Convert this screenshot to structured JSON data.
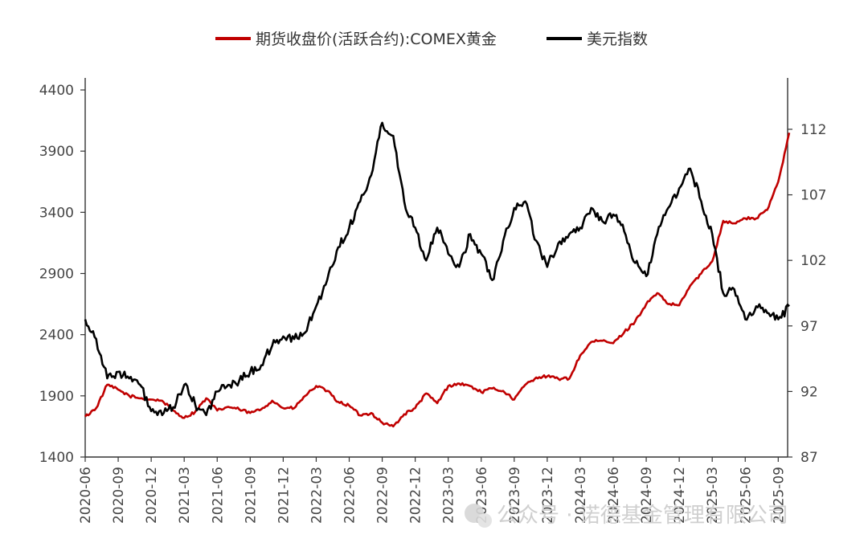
{
  "chart_data": {
    "type": "line",
    "title": "",
    "legend_position": "top",
    "grid": false,
    "x_ticks": [
      "2020-06",
      "2020-09",
      "2020-12",
      "2021-03",
      "2021-06",
      "2021-09",
      "2021-12",
      "2022-03",
      "2022-06",
      "2022-09",
      "2022-12",
      "2023-03",
      "2023-06",
      "2023-09",
      "2023-12",
      "2024-03",
      "2024-06",
      "2024-09",
      "2024-12",
      "2025-03",
      "2025-06",
      "2025-09"
    ],
    "x_range": [
      "2020-06",
      "2025-10"
    ],
    "y_left": {
      "range": [
        1400,
        4400
      ],
      "ticks": [
        1400,
        1900,
        2400,
        2900,
        3400,
        3900,
        4400
      ]
    },
    "y_right": {
      "range": [
        87,
        115
      ],
      "ticks": [
        87,
        92,
        97,
        102,
        107,
        112
      ]
    },
    "series": [
      {
        "name": "期货收盘价(活跃合约):COMEX黄金",
        "axis": "left",
        "color": "#c00000",
        "x": [
          "2020-06",
          "2020-07",
          "2020-08",
          "2020-09",
          "2020-10",
          "2020-11",
          "2020-12",
          "2021-01",
          "2021-02",
          "2021-03",
          "2021-04",
          "2021-05",
          "2021-06",
          "2021-07",
          "2021-08",
          "2021-09",
          "2021-10",
          "2021-11",
          "2021-12",
          "2022-01",
          "2022-02",
          "2022-03",
          "2022-04",
          "2022-05",
          "2022-06",
          "2022-07",
          "2022-08",
          "2022-09",
          "2022-10",
          "2022-11",
          "2022-12",
          "2023-01",
          "2023-02",
          "2023-03",
          "2023-04",
          "2023-05",
          "2023-06",
          "2023-07",
          "2023-08",
          "2023-09",
          "2023-10",
          "2023-11",
          "2023-12",
          "2024-01",
          "2024-02",
          "2024-03",
          "2024-04",
          "2024-05",
          "2024-06",
          "2024-07",
          "2024-08",
          "2024-09",
          "2024-10",
          "2024-11",
          "2024-12",
          "2025-01",
          "2025-02",
          "2025-03",
          "2025-04",
          "2025-05",
          "2025-06",
          "2025-07",
          "2025-08",
          "2025-09",
          "2025-10"
        ],
        "y": [
          1730,
          1800,
          1990,
          1950,
          1900,
          1880,
          1870,
          1860,
          1780,
          1720,
          1770,
          1880,
          1780,
          1810,
          1790,
          1760,
          1790,
          1860,
          1800,
          1800,
          1900,
          1980,
          1940,
          1850,
          1820,
          1740,
          1760,
          1680,
          1650,
          1750,
          1800,
          1920,
          1840,
          1980,
          2000,
          1980,
          1930,
          1960,
          1940,
          1870,
          1990,
          2050,
          2060,
          2040,
          2040,
          2230,
          2340,
          2350,
          2330,
          2420,
          2510,
          2650,
          2740,
          2650,
          2640,
          2800,
          2900,
          3000,
          3330,
          3310,
          3350,
          3350,
          3420,
          3650,
          4050
        ]
      },
      {
        "name": "美元指数",
        "axis": "right",
        "color": "#000000",
        "x": [
          "2020-06",
          "2020-07",
          "2020-08",
          "2020-09",
          "2020-10",
          "2020-11",
          "2020-12",
          "2021-01",
          "2021-02",
          "2021-03",
          "2021-04",
          "2021-05",
          "2021-06",
          "2021-07",
          "2021-08",
          "2021-09",
          "2021-10",
          "2021-11",
          "2021-12",
          "2022-01",
          "2022-02",
          "2022-03",
          "2022-04",
          "2022-05",
          "2022-06",
          "2022-07",
          "2022-08",
          "2022-09",
          "2022-10",
          "2022-11",
          "2022-12",
          "2023-01",
          "2023-02",
          "2023-03",
          "2023-04",
          "2023-05",
          "2023-06",
          "2023-07",
          "2023-08",
          "2023-09",
          "2023-10",
          "2023-11",
          "2023-12",
          "2024-01",
          "2024-02",
          "2024-03",
          "2024-04",
          "2024-05",
          "2024-06",
          "2024-07",
          "2024-08",
          "2024-09",
          "2024-10",
          "2024-11",
          "2024-12",
          "2025-01",
          "2025-02",
          "2025-03",
          "2025-04",
          "2025-05",
          "2025-06",
          "2025-07",
          "2025-08",
          "2025-09",
          "2025-10"
        ],
        "y": [
          97.5,
          96.0,
          93.0,
          93.5,
          93.0,
          92.5,
          90.5,
          90.2,
          90.8,
          92.5,
          91.0,
          90.2,
          92.0,
          92.5,
          92.8,
          93.5,
          94.0,
          95.5,
          96.2,
          96.0,
          96.5,
          98.5,
          100.5,
          103.0,
          104.5,
          106.5,
          108.5,
          112.5,
          111.5,
          106.5,
          104.5,
          102.0,
          104.5,
          102.5,
          101.5,
          104.0,
          102.5,
          100.5,
          103.5,
          106.0,
          106.5,
          103.5,
          101.5,
          103.3,
          104.0,
          104.5,
          106.0,
          105.0,
          105.5,
          104.2,
          101.8,
          100.8,
          104.0,
          106.0,
          107.5,
          109.0,
          106.5,
          104.0,
          99.5,
          99.8,
          97.5,
          98.5,
          98.0,
          97.5,
          98.5
        ]
      }
    ]
  },
  "watermark": {
    "text": "公众号 · 诺德基金管理有限公司"
  }
}
